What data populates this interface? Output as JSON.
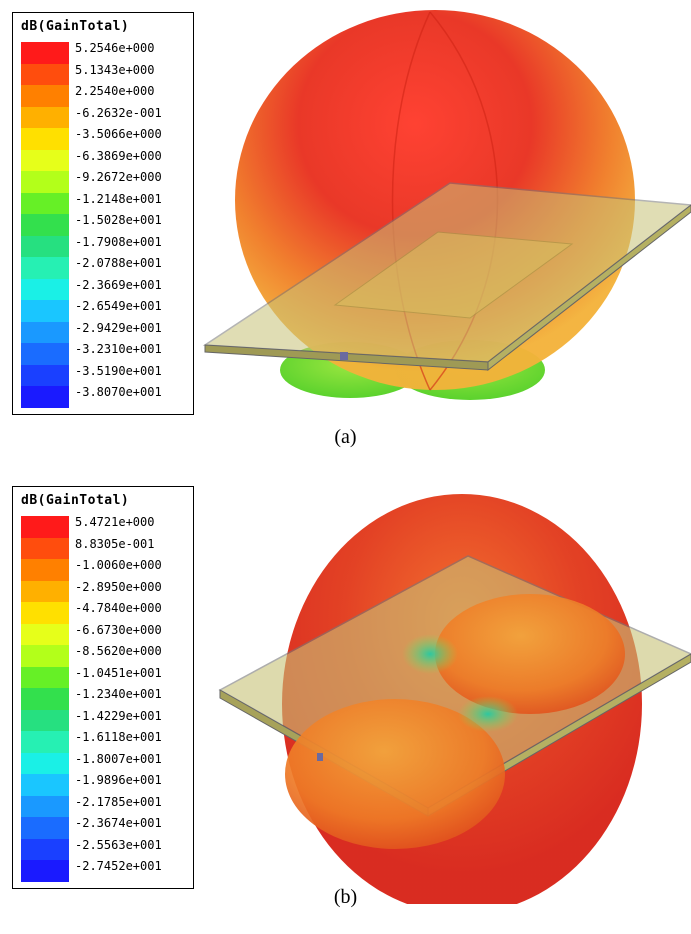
{
  "colors": {
    "scale": [
      "#ff1a1a",
      "#ff4d0d",
      "#ff8000",
      "#ffb000",
      "#ffe000",
      "#e6ff1a",
      "#b3ff1a",
      "#66f026",
      "#33e04d",
      "#26e080",
      "#26f0b3",
      "#1af0e6",
      "#1ac6ff",
      "#1a99ff",
      "#1a6cff",
      "#1a40ff",
      "#1a1aff"
    ],
    "ground_plane": "#c8c278",
    "pattern_hot": "#e61a1a",
    "pattern_mid": "#f08a1a"
  },
  "panel_a": {
    "legend_title": "dB(GainTotal)",
    "labels": [
      "5.2546e+000",
      "5.1343e+000",
      "2.2540e+000",
      "-6.2632e-001",
      "-3.5066e+000",
      "-6.3869e+000",
      "-9.2672e+000",
      "-1.2148e+001",
      "-1.5028e+001",
      "-1.7908e+001",
      "-2.0788e+001",
      "-2.3669e+001",
      "-2.6549e+001",
      "-2.9429e+001",
      "-3.2310e+001",
      "-3.5190e+001",
      "-3.8070e+001"
    ],
    "caption": "(a)"
  },
  "panel_b": {
    "legend_title": "dB(GainTotal)",
    "labels": [
      "5.4721e+000",
      "8.8305e-001",
      "-1.0060e+000",
      "-2.8950e+000",
      "-4.7840e+000",
      "-6.6730e+000",
      "-8.5620e+000",
      "-1.0451e+001",
      "-1.2340e+001",
      "-1.4229e+001",
      "-1.6118e+001",
      "-1.8007e+001",
      "-1.9896e+001",
      "-2.1785e+001",
      "-2.3674e+001",
      "-2.5563e+001",
      "-2.7452e+001"
    ],
    "caption": "(b)"
  }
}
